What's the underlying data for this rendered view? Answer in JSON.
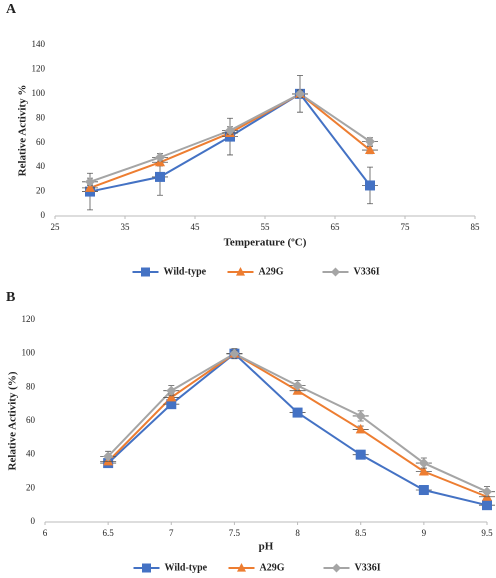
{
  "chart_data": [
    {
      "type": "line",
      "panel_label": "A",
      "x_label": "Temperature (ºC)",
      "y_label": "Relative Activity %",
      "x": [
        30,
        40,
        50,
        60,
        70
      ],
      "series": [
        {
          "name": "Wild-type",
          "color": "#4472c4",
          "marker": "square",
          "values": [
            20,
            32,
            65,
            100,
            25
          ],
          "errors": [
            15,
            15,
            15,
            15,
            15
          ]
        },
        {
          "name": "A29G",
          "color": "#ed7d31",
          "marker": "triangle",
          "values": [
            23,
            44,
            68,
            100,
            54
          ],
          "errors": [
            3,
            3,
            3,
            3,
            3
          ]
        },
        {
          "name": "V336I",
          "color": "#a5a5a5",
          "marker": "diamond",
          "values": [
            28,
            48,
            70,
            100,
            61
          ],
          "errors": [
            3,
            3,
            3,
            3,
            3
          ]
        }
      ],
      "xlim": [
        25,
        85
      ],
      "xticks": [
        25,
        35,
        45,
        55,
        65,
        75,
        85
      ],
      "ylim": [
        0,
        140
      ],
      "yticks": [
        0,
        20,
        40,
        60,
        80,
        100,
        120,
        140
      ],
      "grid": false,
      "legend": "bottom"
    },
    {
      "type": "line",
      "panel_label": "B",
      "x_label": "pH",
      "y_label": "Relative Activity (%)",
      "x": [
        6.5,
        7,
        7.5,
        8,
        8.5,
        9,
        9.5
      ],
      "series": [
        {
          "name": "Wild-type",
          "color": "#4472c4",
          "marker": "square",
          "values": [
            35,
            70,
            100,
            65,
            40,
            19,
            10
          ],
          "errors": [
            2,
            2,
            2,
            2,
            2,
            2,
            2
          ]
        },
        {
          "name": "A29G",
          "color": "#ed7d31",
          "marker": "triangle",
          "values": [
            36,
            74,
            100,
            78,
            55,
            30,
            15
          ],
          "errors": [
            2,
            2,
            2,
            2,
            2,
            2,
            2
          ]
        },
        {
          "name": "V336I",
          "color": "#a5a5a5",
          "marker": "diamond",
          "values": [
            39,
            78,
            100,
            81,
            63,
            35,
            18
          ],
          "errors": [
            3,
            3,
            3,
            3,
            3,
            3,
            3
          ]
        }
      ],
      "xlim": [
        6,
        9.5
      ],
      "xticks": [
        6,
        6.5,
        7,
        7.5,
        8,
        8.5,
        9,
        9.5
      ],
      "ylim": [
        0,
        120
      ],
      "yticks": [
        0,
        20,
        40,
        60,
        80,
        100,
        120
      ],
      "grid": false,
      "legend": "bottom"
    }
  ]
}
